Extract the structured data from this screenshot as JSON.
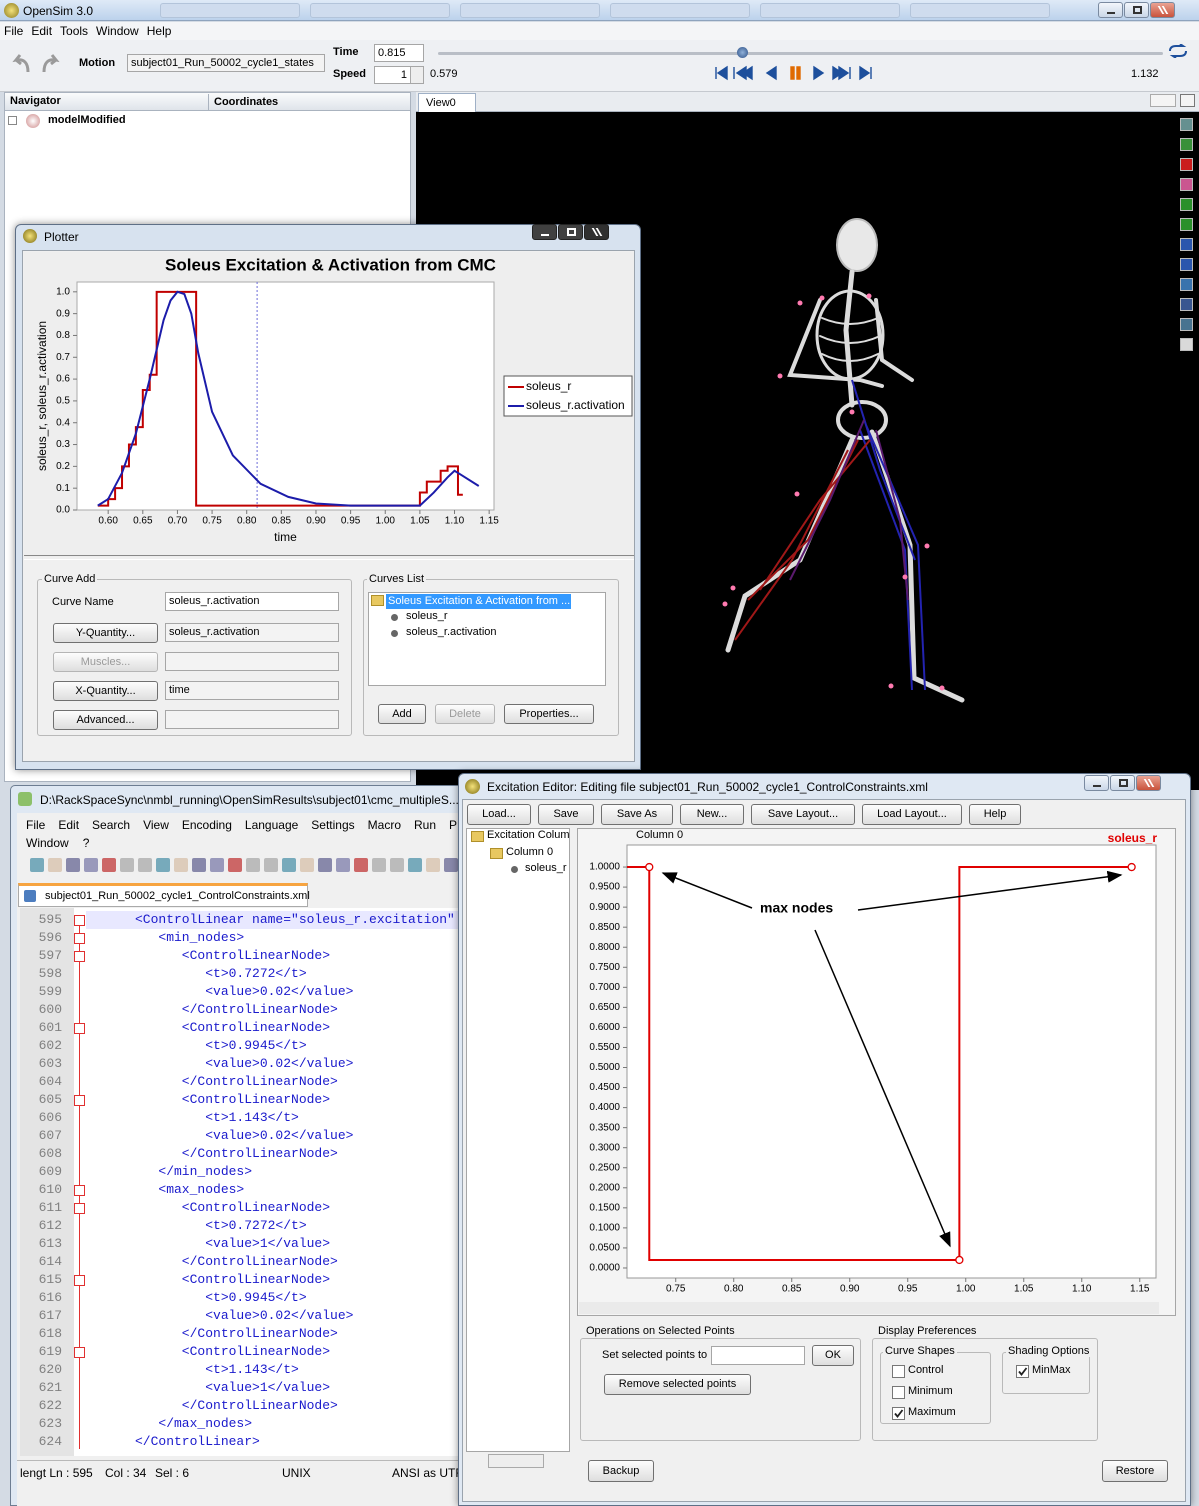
{
  "app": {
    "title": "OpenSim 3.0",
    "menu": [
      "File",
      "Edit",
      "Tools",
      "Window",
      "Help"
    ]
  },
  "toolbar": {
    "motion_label": "Motion",
    "motion": "subject01_Run_50002_cycle1_states",
    "time_label": "Time",
    "time": "0.815",
    "speed_label": "Speed",
    "speed": "1",
    "start_time": "0.579",
    "end_time": "1.132"
  },
  "navigator": {
    "tabs": [
      "Navigator",
      "Coordinates"
    ],
    "model": "modelModified"
  },
  "view": {
    "tab": "View0"
  },
  "plotter": {
    "title": "Plotter",
    "curve_add": {
      "title": "Curve Add",
      "curve_name_label": "Curve Name",
      "curve_name": "soleus_r.activation",
      "buttons": [
        {
          "label": "Y-Quantity...",
          "value": "soleus_r.activation",
          "enabled": true
        },
        {
          "label": "Muscles...",
          "enabled": false
        },
        {
          "label": "X-Quantity...",
          "value": "time",
          "enabled": true
        },
        {
          "label": "Advanced...",
          "enabled": true
        }
      ]
    },
    "curves_list": {
      "title": "Curves List",
      "root": "Soleus Excitation & Activation from ...",
      "items": [
        "soleus_r",
        "soleus_r.activation"
      ],
      "buttons": [
        {
          "label": "Add",
          "enabled": true
        },
        {
          "label": "Delete",
          "enabled": false
        },
        {
          "label": "Properties...",
          "enabled": true
        }
      ]
    }
  },
  "notepad": {
    "title": "D:\\RackSpaceSync\\nmbl_running\\OpenSimResults\\subject01\\cmc_multipleS...",
    "menu": [
      "File",
      "Edit",
      "Search",
      "View",
      "Encoding",
      "Language",
      "Settings",
      "Macro",
      "Run",
      "P"
    ],
    "menu2": [
      "Window",
      "?"
    ],
    "tab": "subject01_Run_50002_cycle1_ControlConstraints.xml",
    "lines": [
      {
        "n": 595,
        "code": "<ControlLinear name=\"soleus_r.excitation\""
      },
      {
        "n": 596,
        "code": "   <min_nodes>"
      },
      {
        "n": 597,
        "code": "      <ControlLinearNode>"
      },
      {
        "n": 598,
        "code": "         <t>0.7272</t>"
      },
      {
        "n": 599,
        "code": "         <value>0.02</value>"
      },
      {
        "n": 600,
        "code": "      </ControlLinearNode>"
      },
      {
        "n": 601,
        "code": "      <ControlLinearNode>"
      },
      {
        "n": 602,
        "code": "         <t>0.9945</t>"
      },
      {
        "n": 603,
        "code": "         <value>0.02</value>"
      },
      {
        "n": 604,
        "code": "      </ControlLinearNode>"
      },
      {
        "n": 605,
        "code": "      <ControlLinearNode>"
      },
      {
        "n": 606,
        "code": "         <t>1.143</t>"
      },
      {
        "n": 607,
        "code": "         <value>0.02</value>"
      },
      {
        "n": 608,
        "code": "      </ControlLinearNode>"
      },
      {
        "n": 609,
        "code": "   </min_nodes>"
      },
      {
        "n": 610,
        "code": "   <max_nodes>"
      },
      {
        "n": 611,
        "code": "      <ControlLinearNode>"
      },
      {
        "n": 612,
        "code": "         <t>0.7272</t>"
      },
      {
        "n": 613,
        "code": "         <value>1</value>"
      },
      {
        "n": 614,
        "code": "      </ControlLinearNode>"
      },
      {
        "n": 615,
        "code": "      <ControlLinearNode>"
      },
      {
        "n": 616,
        "code": "         <t>0.9945</t>"
      },
      {
        "n": 617,
        "code": "         <value>0.02</value>"
      },
      {
        "n": 618,
        "code": "      </ControlLinearNode>"
      },
      {
        "n": 619,
        "code": "      <ControlLinearNode>"
      },
      {
        "n": 620,
        "code": "         <t>1.143</t>"
      },
      {
        "n": 621,
        "code": "         <value>1</value>"
      },
      {
        "n": 622,
        "code": "      </ControlLinearNode>"
      },
      {
        "n": 623,
        "code": "   </max_nodes>"
      },
      {
        "n": 624,
        "code": "</ControlLinear>"
      }
    ],
    "status": [
      "lengt Ln : 595",
      "Col : 34",
      "Sel : 6",
      "UNIX",
      "ANSI as UTF"
    ]
  },
  "excitation_editor": {
    "title": "Excitation Editor: Editing file subject01_Run_50002_cycle1_ControlConstraints.xml",
    "buttons": [
      "Load...",
      "Save",
      "Save As",
      "New...",
      "Save Layout...",
      "Load Layout...",
      "Help"
    ],
    "tree": [
      "Excitation Colum",
      "Column 0",
      "soleus_r"
    ],
    "panel_title": "Column 0",
    "operations": {
      "title": "Operations on Selected Points",
      "set_label": "Set selected points to",
      "ok": "OK",
      "remove": "Remove selected points"
    },
    "display": {
      "title": "Display Preferences",
      "curve_shapes": {
        "title": "Curve Shapes",
        "options": [
          {
            "label": "Control",
            "checked": false
          },
          {
            "label": "Minimum",
            "checked": false
          },
          {
            "label": "Maximum",
            "checked": true
          }
        ]
      },
      "shading": {
        "title": "Shading Options",
        "options": [
          {
            "label": "MinMax",
            "checked": true
          }
        ]
      }
    },
    "backup": "Backup",
    "restore": "Restore"
  },
  "chart_data": [
    {
      "type": "line",
      "title": "Soleus Excitation & Activation from CMC",
      "x_label": "time",
      "y_label": "soleus_r, soleus_r.activation",
      "xlim": [
        0.555,
        1.157
      ],
      "ylim": [
        0,
        1.045
      ],
      "grid": false,
      "legend": "right",
      "cursor": 0.815,
      "xticks": [
        {
          "value": 0.6,
          "label": "0.60"
        },
        0.65,
        {
          "value": 0.7,
          "label": "0.70"
        },
        0.75,
        {
          "value": 0.8,
          "label": "0.80"
        },
        0.85,
        {
          "value": 0.9,
          "label": "0.90"
        },
        0.95,
        {
          "value": 1.0,
          "label": "1.00"
        },
        1.05,
        {
          "value": 1.1,
          "label": "1.10"
        },
        1.15
      ],
      "yticks": [
        {
          "value": 0,
          "label": "0.0"
        },
        0.1,
        0.2,
        0.3,
        0.4,
        0.5,
        0.6,
        0.7,
        0.8,
        0.9,
        {
          "value": 1,
          "label": "1.0"
        }
      ],
      "series": [
        {
          "name": "soleus_r",
          "color": "#c00000",
          "x": [
            0.585,
            0.6,
            0.6,
            0.61,
            0.61,
            0.62,
            0.62,
            0.63,
            0.63,
            0.64,
            0.64,
            0.65,
            0.65,
            0.66,
            0.66,
            0.67,
            0.67,
            0.727,
            0.727,
            1.05,
            1.05,
            1.06,
            1.06,
            1.08,
            1.08,
            1.09,
            1.09,
            1.105,
            1.105,
            1.112
          ],
          "values": [
            0.02,
            0.02,
            0.05,
            0.05,
            0.1,
            0.1,
            0.2,
            0.2,
            0.3,
            0.3,
            0.38,
            0.38,
            0.55,
            0.55,
            0.62,
            0.62,
            1.0,
            1.0,
            0.02,
            0.02,
            0.08,
            0.08,
            0.13,
            0.13,
            0.18,
            0.18,
            0.2,
            0.2,
            0.07,
            0.07
          ]
        },
        {
          "name": "soleus_r.activation",
          "color": "#1c1caa",
          "x": [
            0.585,
            0.6,
            0.62,
            0.64,
            0.66,
            0.68,
            0.69,
            0.7,
            0.71,
            0.72,
            0.73,
            0.75,
            0.78,
            0.82,
            0.86,
            0.9,
            0.95,
            1.05,
            1.07,
            1.09,
            1.1,
            1.11,
            1.135
          ],
          "values": [
            0.02,
            0.05,
            0.17,
            0.35,
            0.6,
            0.87,
            0.96,
            1.0,
            0.99,
            0.9,
            0.72,
            0.45,
            0.25,
            0.12,
            0.06,
            0.03,
            0.02,
            0.02,
            0.08,
            0.15,
            0.18,
            0.16,
            0.11
          ]
        }
      ]
    },
    {
      "type": "line",
      "step": true,
      "xlim": [
        0.708,
        1.164
      ],
      "ylim": [
        -0.025,
        1.055
      ],
      "grid": false,
      "legend": "top-right",
      "annotation": "max nodes",
      "xticks": [
        0.75,
        {
          "value": 0.8,
          "label": "0.80"
        },
        0.85,
        {
          "value": 0.9,
          "label": "0.90"
        },
        0.95,
        {
          "value": 1.0,
          "label": "1.00"
        },
        1.05,
        {
          "value": 1.1,
          "label": "1.10"
        },
        1.15
      ],
      "yticks": [
        {
          "value": 0,
          "label": "0.0000"
        },
        {
          "value": 0.05,
          "label": "0.0500"
        },
        {
          "value": 0.1,
          "label": "0.1000"
        },
        {
          "value": 0.15,
          "label": "0.1500"
        },
        {
          "value": 0.2,
          "label": "0.2000"
        },
        {
          "value": 0.25,
          "label": "0.2500"
        },
        {
          "value": 0.3,
          "label": "0.3000"
        },
        {
          "value": 0.35,
          "label": "0.3500"
        },
        {
          "value": 0.4,
          "label": "0.4000"
        },
        {
          "value": 0.45,
          "label": "0.4500"
        },
        {
          "value": 0.5,
          "label": "0.5000"
        },
        {
          "value": 0.55,
          "label": "0.5500"
        },
        {
          "value": 0.6,
          "label": "0.6000"
        },
        {
          "value": 0.65,
          "label": "0.6500"
        },
        {
          "value": 0.7,
          "label": "0.7000"
        },
        {
          "value": 0.75,
          "label": "0.7500"
        },
        {
          "value": 0.8,
          "label": "0.8000"
        },
        {
          "value": 0.85,
          "label": "0.8500"
        },
        {
          "value": 0.9,
          "label": "0.9000"
        },
        {
          "value": 0.95,
          "label": "0.9500"
        },
        {
          "value": 1,
          "label": "1.0000"
        }
      ],
      "series": [
        {
          "name": "soleus_r",
          "color": "#e00000",
          "x": [
            0.7272,
            0.9945,
            1.143
          ],
          "values": [
            1,
            0.02,
            1
          ]
        }
      ]
    }
  ]
}
